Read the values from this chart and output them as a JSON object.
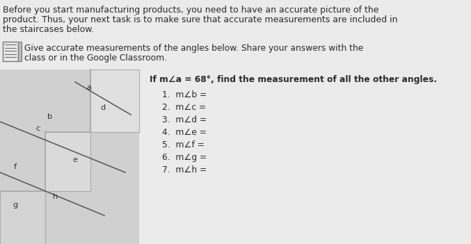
{
  "bg_color": "#ebebeb",
  "header_line1": "Before you start manufacturing products, you need to have an accurate picture of the",
  "header_line2": "product. Thus, your next task is to make sure that accurate measurements are included in",
  "header_line3": "the staircases below.",
  "instr_line1": "Give accurate measurements of the angles below. Share your answers with the",
  "instr_line2": "class or in the Google Classroom.",
  "problem_text": "If m∠a = 68°, find the measurement of all the other angles.",
  "questions": [
    "1.  m∠b =",
    "2.  m∠c =",
    "3.  m∠d =",
    "4.  m∠e =",
    "5.  m∠f =",
    "6.  m∠g =",
    "7.  m∠h ="
  ],
  "text_color": "#2a2a2a",
  "stair_fill": "#c8c8c8",
  "stair_edge": "#aaaaaa",
  "diag_color": "#555555",
  "label_color": "#333333"
}
